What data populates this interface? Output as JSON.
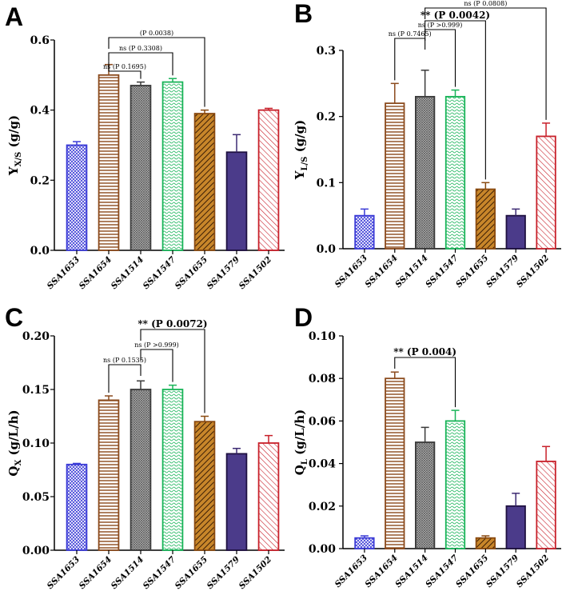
{
  "figure": {
    "categories": [
      "SSA1653",
      "SSA1654",
      "SSA1514",
      "SSA1547",
      "SSA1655",
      "SSA1579",
      "SSA1502"
    ],
    "series_colors": [
      "#3a3ad6",
      "#8b4a1c",
      "#3a3a3a",
      "#18b458",
      "#8a4a10",
      "#3c2a72",
      "#c8202a"
    ],
    "bar_styles": [
      "crosshatch-blue",
      "horizontal-stripes-brown",
      "crosshatch-grey",
      "wave-green",
      "diagonal-solid-brown",
      "solid-purple",
      "diagonal-red"
    ]
  },
  "chart_data": [
    {
      "panel": "A",
      "type": "bar",
      "ylabel_main": "Y",
      "ylabel_sub": "X/S",
      "ylabel_unit": " (g/g)",
      "ylim": [
        0,
        0.6
      ],
      "yticks": [
        "0.0",
        "0.2",
        "0.4",
        "0.6"
      ],
      "values": [
        0.3,
        0.5,
        0.47,
        0.48,
        0.39,
        0.28,
        0.4
      ],
      "errors": [
        0.01,
        0.03,
        0.01,
        0.01,
        0.01,
        0.05,
        0.005
      ],
      "comparisons": [
        {
          "from": 1,
          "to": 2,
          "text": "ns (P 0.1695)"
        },
        {
          "from": 1,
          "to": 3,
          "text": "ns (P 0.3308)"
        },
        {
          "from": 1,
          "to": 4,
          "text": "(P 0.0038)"
        }
      ]
    },
    {
      "panel": "B",
      "type": "bar",
      "ylabel_main": "Y",
      "ylabel_sub": "L/S",
      "ylabel_unit": " (g/g)",
      "ylim": [
        0,
        0.3
      ],
      "yticks": [
        "0.0",
        "0.1",
        "0.2",
        "0.3"
      ],
      "values": [
        0.05,
        0.22,
        0.23,
        0.23,
        0.09,
        0.05,
        0.17
      ],
      "errors": [
        0.01,
        0.03,
        0.04,
        0.01,
        0.01,
        0.01,
        0.02
      ],
      "comparisons": [
        {
          "from": 2,
          "to": 1,
          "text": "ns (P 0.7465)"
        },
        {
          "from": 2,
          "to": 3,
          "text": "ns (P >0.999)"
        },
        {
          "from": 2,
          "to": 4,
          "text": "** (P 0.0042)"
        },
        {
          "from": 2,
          "to": 6,
          "text": "ns (P 0.0808)"
        }
      ]
    },
    {
      "panel": "C",
      "type": "bar",
      "ylabel_main": "Q",
      "ylabel_sub": "X",
      "ylabel_unit": " (g/L/h)",
      "ylim": [
        0,
        0.2
      ],
      "yticks": [
        "0.00",
        "0.05",
        "0.10",
        "0.15",
        "0.20"
      ],
      "values": [
        0.08,
        0.14,
        0.15,
        0.15,
        0.12,
        0.09,
        0.1
      ],
      "errors": [
        0.001,
        0.004,
        0.008,
        0.004,
        0.005,
        0.005,
        0.007
      ],
      "comparisons": [
        {
          "from": 2,
          "to": 1,
          "text": "ns (P 0.1535)"
        },
        {
          "from": 2,
          "to": 3,
          "text": "ns (P >0.999)"
        },
        {
          "from": 2,
          "to": 4,
          "text": "** (P 0.0072)"
        }
      ]
    },
    {
      "panel": "D",
      "type": "bar",
      "ylabel_main": "Q",
      "ylabel_sub": "L",
      "ylabel_unit": " (g/L/h)",
      "ylim": [
        0,
        0.1
      ],
      "yticks": [
        "0.00",
        "0.02",
        "0.04",
        "0.06",
        "0.08",
        "0.10"
      ],
      "values": [
        0.005,
        0.08,
        0.05,
        0.06,
        0.005,
        0.02,
        0.041
      ],
      "errors": [
        0.001,
        0.003,
        0.007,
        0.005,
        0.001,
        0.006,
        0.007
      ],
      "comparisons": [
        {
          "from": 1,
          "to": 3,
          "text": "** (P 0.004)"
        }
      ]
    }
  ]
}
